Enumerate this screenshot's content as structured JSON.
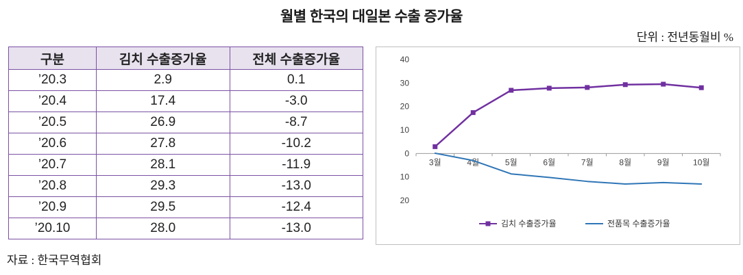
{
  "title": "월별 한국의 대일본 수출 증가율",
  "unit_label": "단위 : 전년동월비 %",
  "source": "자료 : 한국무역협회",
  "colors": {
    "accent_purple": "#7030a0",
    "accent_blue": "#2e75b6",
    "table_border": "#7a4fa3",
    "table_header_bg": "#e8e2ef",
    "chart_border": "#bfbfbf"
  },
  "table": {
    "headers": [
      "구분",
      "김치 수출증가율",
      "전체 수출증가율"
    ],
    "rows": [
      [
        "’20.3",
        "2.9",
        "0.1"
      ],
      [
        "’20.4",
        "17.4",
        "-3.0"
      ],
      [
        "’20.5",
        "26.9",
        "-8.7"
      ],
      [
        "’20.6",
        "27.8",
        "-10.2"
      ],
      [
        "’20.7",
        "28.1",
        "-11.9"
      ],
      [
        "’20.8",
        "29.3",
        "-13.0"
      ],
      [
        "’20.9",
        "29.5",
        "-12.4"
      ],
      [
        "’20.10",
        "28.0",
        "-13.0"
      ]
    ]
  },
  "chart_data": {
    "type": "line",
    "title": "",
    "xlabel": "",
    "ylabel": "",
    "categories": [
      "3월",
      "4월",
      "5월",
      "6월",
      "7월",
      "8월",
      "9월",
      "10월"
    ],
    "series": [
      {
        "name": "김치 수출증가율",
        "color": "#7030a0",
        "marker": "square",
        "values": [
          2.9,
          17.4,
          26.9,
          27.8,
          28.1,
          29.3,
          29.5,
          28.0
        ]
      },
      {
        "name": "전품목 수출증가율",
        "color": "#2e75b6",
        "marker": "none",
        "values": [
          0.1,
          -3.0,
          -8.7,
          -10.2,
          -11.9,
          -13.0,
          -12.4,
          -13.0
        ]
      }
    ],
    "ylim": [
      -20,
      40
    ],
    "ytick_step": 10,
    "ytick_labels": [
      "40",
      "30",
      "20",
      "10",
      "0",
      "10",
      "20"
    ],
    "grid": false,
    "legend_position": "bottom"
  }
}
